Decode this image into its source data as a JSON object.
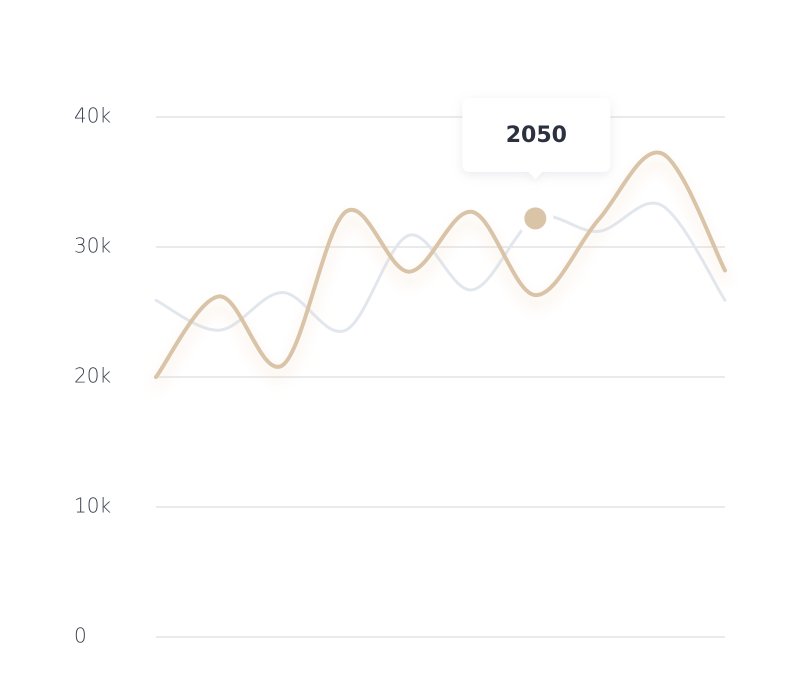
{
  "chart_data": {
    "type": "line",
    "categories": [
      null,
      null,
      null,
      null,
      null,
      null,
      null,
      null,
      null,
      null
    ],
    "series": [
      {
        "color": "#d9c4a8",
        "values": [
          20000,
          26200,
          20900,
          32700,
          28100,
          32700,
          26300,
          32100,
          37200,
          28200
        ]
      },
      {
        "color": "#e2e7ee",
        "values": [
          25900,
          23600,
          26500,
          23600,
          30900,
          26700,
          32200,
          31200,
          33200,
          25900
        ]
      }
    ],
    "ylim": [
      0,
      40000
    ],
    "yticks": [
      {
        "value": 0,
        "label": "0"
      },
      {
        "value": 10000,
        "label": "10k"
      },
      {
        "value": 20000,
        "label": "20k"
      },
      {
        "value": 30000,
        "label": "30k"
      },
      {
        "value": 40000,
        "label": "40k"
      }
    ],
    "grid": true,
    "tooltip": {
      "text": "2050",
      "series": 1,
      "index": 6
    }
  }
}
